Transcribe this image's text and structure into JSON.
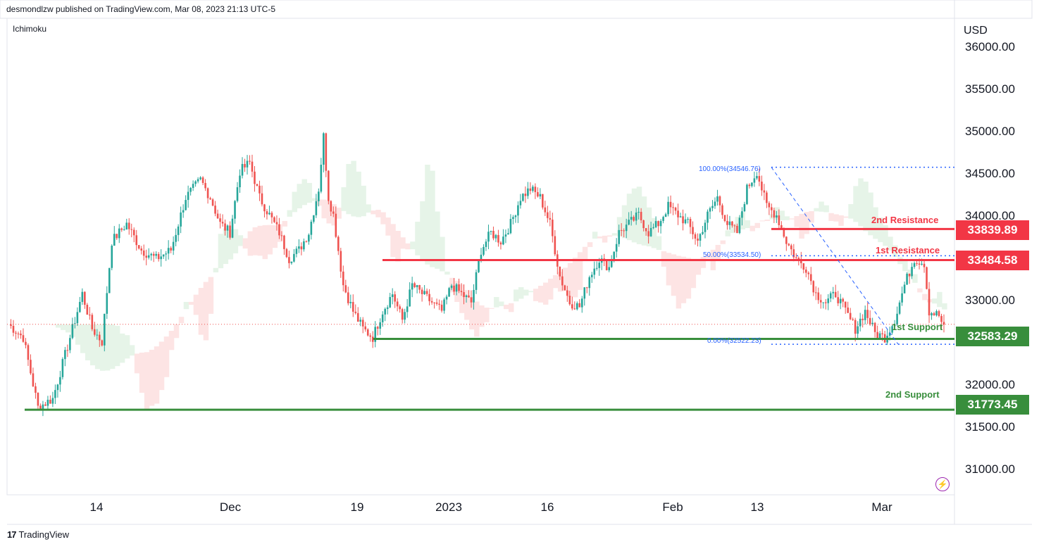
{
  "header": {
    "publisher": "desmondlzw published on TradingView.com, Mar 08, 2023 21:13 UTC-5",
    "indicator": "Ichimoku",
    "currency": "USD"
  },
  "footer": {
    "brand": "TradingView",
    "logo_text": "17"
  },
  "colors": {
    "resistance": "#f23645",
    "support": "#388e3c",
    "fib": "#2962ff",
    "up": "#26a69a",
    "down": "#ef5350",
    "cloud_up": "#e6f4e8",
    "cloud_down": "#fde4e4"
  },
  "chart_data": {
    "type": "candlestick",
    "ylim": [
      30800,
      36250
    ],
    "yticks": [
      "36000.00",
      "35500.00",
      "35000.00",
      "34500.00",
      "34000.00",
      "33000.00",
      "32000.00",
      "31500.00",
      "31000.00"
    ],
    "xticks": [
      "14",
      "Dec",
      "19",
      "2023",
      "16",
      "Feb",
      "13",
      "Mar"
    ],
    "close_path": [
      [
        0,
        32750
      ],
      [
        3,
        32600
      ],
      [
        6,
        31800
      ],
      [
        9,
        31900
      ],
      [
        12,
        32500
      ],
      [
        15,
        33100
      ],
      [
        17,
        32700
      ],
      [
        19,
        32550
      ],
      [
        21,
        33700
      ],
      [
        24,
        33900
      ],
      [
        27,
        33600
      ],
      [
        30,
        33500
      ],
      [
        33,
        33600
      ],
      [
        36,
        34200
      ],
      [
        39,
        34400
      ],
      [
        41,
        34200
      ],
      [
        43,
        33900
      ],
      [
        45,
        33800
      ],
      [
        47,
        34500
      ],
      [
        49,
        34600
      ],
      [
        51,
        34200
      ],
      [
        53,
        34000
      ],
      [
        55,
        33800
      ],
      [
        57,
        33500
      ],
      [
        59,
        33600
      ],
      [
        61,
        33800
      ],
      [
        63,
        34300
      ],
      [
        64,
        34900
      ],
      [
        65,
        34200
      ],
      [
        66,
        34000
      ],
      [
        68,
        33200
      ],
      [
        70,
        32900
      ],
      [
        72,
        32700
      ],
      [
        74,
        32600
      ],
      [
        76,
        32900
      ],
      [
        78,
        33100
      ],
      [
        80,
        32800
      ],
      [
        82,
        33200
      ],
      [
        84,
        33100
      ],
      [
        86,
        33000
      ],
      [
        88,
        32900
      ],
      [
        90,
        33200
      ],
      [
        92,
        33100
      ],
      [
        94,
        33000
      ],
      [
        96,
        33600
      ],
      [
        98,
        33800
      ],
      [
        100,
        33700
      ],
      [
        102,
        33900
      ],
      [
        104,
        34200
      ],
      [
        106,
        34300
      ],
      [
        108,
        34200
      ],
      [
        110,
        33900
      ],
      [
        112,
        33300
      ],
      [
        114,
        33000
      ],
      [
        116,
        32950
      ],
      [
        118,
        33300
      ],
      [
        120,
        33500
      ],
      [
        122,
        33400
      ],
      [
        124,
        33800
      ],
      [
        126,
        33900
      ],
      [
        128,
        34000
      ],
      [
        130,
        33800
      ],
      [
        132,
        33900
      ],
      [
        134,
        34100
      ],
      [
        136,
        34000
      ],
      [
        138,
        33900
      ],
      [
        140,
        33700
      ],
      [
        142,
        34000
      ],
      [
        144,
        34200
      ],
      [
        146,
        33900
      ],
      [
        148,
        33800
      ],
      [
        150,
        34300
      ],
      [
        152,
        34500
      ],
      [
        154,
        34100
      ],
      [
        156,
        34000
      ],
      [
        158,
        33700
      ],
      [
        160,
        33500
      ],
      [
        162,
        33400
      ],
      [
        164,
        33100
      ],
      [
        166,
        33000
      ],
      [
        168,
        33100
      ],
      [
        170,
        32900
      ],
      [
        172,
        32700
      ],
      [
        174,
        32900
      ],
      [
        176,
        32650
      ],
      [
        178,
        32600
      ],
      [
        180,
        32800
      ],
      [
        182,
        33200
      ],
      [
        184,
        33500
      ],
      [
        186,
        33450
      ],
      [
        187,
        32900
      ],
      [
        189,
        32850
      ],
      [
        190,
        32700
      ]
    ],
    "levels": [
      {
        "label": "2nd Resistance",
        "value": "33839.89",
        "kind": "resistance"
      },
      {
        "label": "1st Resistance",
        "value": "33484.58",
        "kind": "resistance"
      },
      {
        "label": "1st Support",
        "value": "32583.29",
        "kind": "support"
      },
      {
        "label": "2nd Support",
        "value": "31773.45",
        "kind": "support"
      }
    ],
    "fib": [
      {
        "label": "100.00%(34546.76)",
        "value": 34546.76
      },
      {
        "label": "50.00%(33534.50)",
        "value": 33534.5
      },
      {
        "label": "0.00%(32522.23)",
        "value": 32522.23
      }
    ],
    "last_price": 32750
  }
}
